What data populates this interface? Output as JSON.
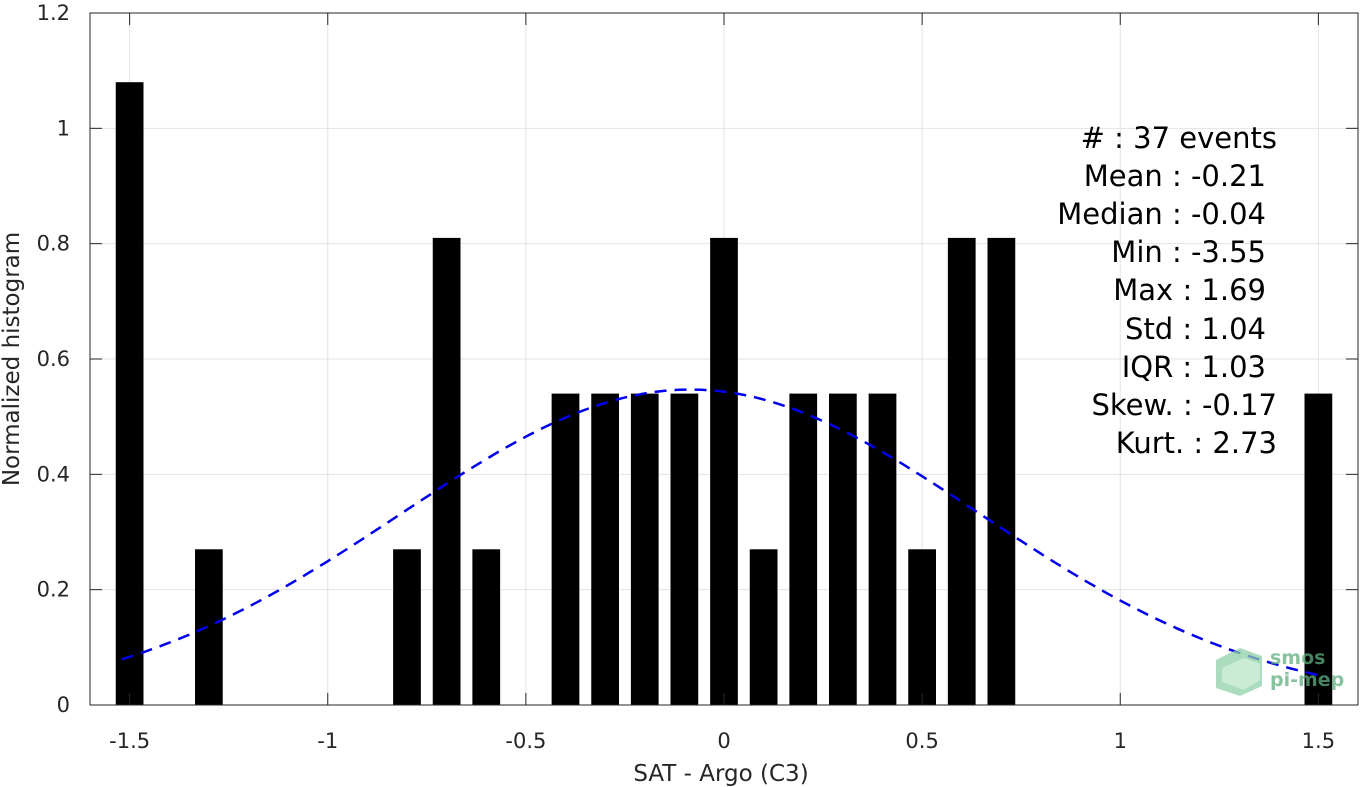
{
  "chart_data": {
    "type": "bar",
    "title": "",
    "xlabel": "SAT - Argo (C3)",
    "ylabel": "Normalized histogram",
    "xlim": [
      -1.6,
      1.6
    ],
    "ylim": [
      0,
      1.2
    ],
    "grid": true,
    "bar_color": "#000000",
    "bar_width": 0.07,
    "x_ticks": [
      -1.5,
      -1,
      -0.5,
      0,
      0.5,
      1,
      1.5
    ],
    "x_tick_labels": [
      "-1.5",
      "-1",
      "-0.5",
      "0",
      "0.5",
      "1",
      "1.5"
    ],
    "y_ticks": [
      0,
      0.2,
      0.4,
      0.6,
      0.8,
      1,
      1.2
    ],
    "y_tick_labels": [
      "0",
      "0.2",
      "0.4",
      "0.6",
      "0.8",
      "1",
      "1.2"
    ],
    "bars": [
      {
        "x": -1.5,
        "y": 1.08
      },
      {
        "x": -1.3,
        "y": 0.27
      },
      {
        "x": -0.8,
        "y": 0.27
      },
      {
        "x": -0.7,
        "y": 0.81
      },
      {
        "x": -0.6,
        "y": 0.27
      },
      {
        "x": -0.4,
        "y": 0.54
      },
      {
        "x": -0.3,
        "y": 0.54
      },
      {
        "x": -0.2,
        "y": 0.54
      },
      {
        "x": -0.1,
        "y": 0.54
      },
      {
        "x": 0.0,
        "y": 0.81
      },
      {
        "x": 0.1,
        "y": 0.27
      },
      {
        "x": 0.2,
        "y": 0.54
      },
      {
        "x": 0.3,
        "y": 0.54
      },
      {
        "x": 0.4,
        "y": 0.54
      },
      {
        "x": 0.5,
        "y": 0.27
      },
      {
        "x": 0.6,
        "y": 0.81
      },
      {
        "x": 0.7,
        "y": 0.81
      },
      {
        "x": 1.5,
        "y": 0.54
      }
    ],
    "fit_curve": {
      "style": "dashed",
      "color": "#0000ee",
      "x_range": [
        -1.52,
        1.52
      ],
      "mean": -0.085,
      "std": 0.73,
      "peak": 0.547
    },
    "stats_lines": [
      "#  : 37 events",
      "Mean : -0.21",
      "Median : -0.04",
      "Min : -3.55",
      "Max : 1.69",
      "Std : 1.04",
      "IQR : 1.03",
      "Skew. : -0.17",
      "Kurt. : 2.73"
    ],
    "logo": {
      "line1": "smos",
      "line2": "pi-mep",
      "color": "#5fae7e"
    }
  }
}
